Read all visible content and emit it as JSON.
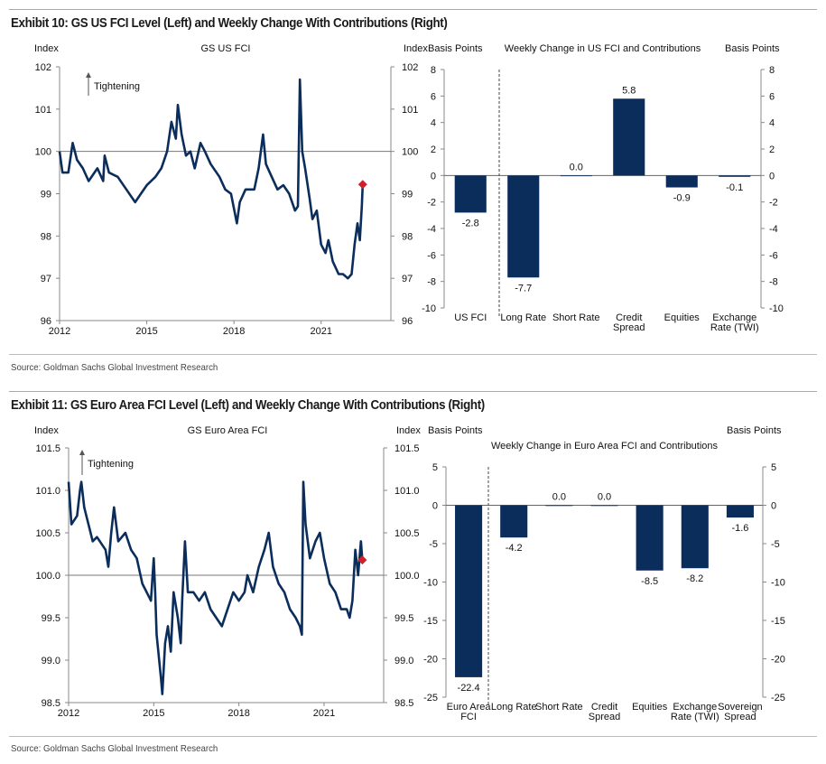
{
  "exhibits": [
    {
      "title": "Exhibit 10: GS US FCI Level (Left) and Weekly Change With Contributions (Right)",
      "source": "Source: Goldman Sachs Global Investment Research"
    },
    {
      "title": "Exhibit 11: GS Euro Area FCI Level (Left) and Weekly Change With Contributions (Right)",
      "source": "Source: Goldman Sachs Global Investment Research"
    }
  ],
  "chart_data": [
    {
      "type": "line",
      "title": "GS US FCI",
      "ylabel_left": "Index",
      "ylabel_right": "Index",
      "annotation": "Tightening",
      "ylim": [
        96,
        102
      ],
      "yticks": [
        "96",
        "97",
        "98",
        "99",
        "100",
        "101",
        "102"
      ],
      "xlim": [
        2012,
        2023.4
      ],
      "xticks": [
        "2012",
        "2015",
        "2018",
        "2021"
      ],
      "reference_line": 100,
      "line_color": "#0b2d5b",
      "marker_color": "#d0202a",
      "latest": [
        2022.43,
        99.22
      ],
      "points": [
        [
          2012.0,
          100.0
        ],
        [
          2012.1,
          99.5
        ],
        [
          2012.3,
          99.5
        ],
        [
          2012.45,
          100.2
        ],
        [
          2012.6,
          99.8
        ],
        [
          2012.8,
          99.6
        ],
        [
          2013.0,
          99.3
        ],
        [
          2013.3,
          99.6
        ],
        [
          2013.5,
          99.3
        ],
        [
          2013.55,
          99.9
        ],
        [
          2013.7,
          99.5
        ],
        [
          2014.0,
          99.4
        ],
        [
          2014.3,
          99.1
        ],
        [
          2014.6,
          98.8
        ],
        [
          2014.8,
          99.0
        ],
        [
          2015.0,
          99.2
        ],
        [
          2015.3,
          99.4
        ],
        [
          2015.5,
          99.6
        ],
        [
          2015.7,
          100.0
        ],
        [
          2015.85,
          100.7
        ],
        [
          2016.0,
          100.3
        ],
        [
          2016.07,
          101.1
        ],
        [
          2016.2,
          100.4
        ],
        [
          2016.35,
          99.9
        ],
        [
          2016.5,
          100.0
        ],
        [
          2016.65,
          99.6
        ],
        [
          2016.85,
          100.2
        ],
        [
          2017.0,
          100.0
        ],
        [
          2017.2,
          99.7
        ],
        [
          2017.5,
          99.4
        ],
        [
          2017.7,
          99.1
        ],
        [
          2017.9,
          99.0
        ],
        [
          2018.1,
          98.3
        ],
        [
          2018.2,
          98.8
        ],
        [
          2018.4,
          99.1
        ],
        [
          2018.7,
          99.1
        ],
        [
          2018.85,
          99.6
        ],
        [
          2019.0,
          100.4
        ],
        [
          2019.1,
          99.7
        ],
        [
          2019.3,
          99.4
        ],
        [
          2019.5,
          99.1
        ],
        [
          2019.7,
          99.2
        ],
        [
          2019.9,
          99.0
        ],
        [
          2020.1,
          98.6
        ],
        [
          2020.2,
          98.7
        ],
        [
          2020.27,
          101.7
        ],
        [
          2020.35,
          100.0
        ],
        [
          2020.45,
          99.6
        ],
        [
          2020.6,
          98.9
        ],
        [
          2020.7,
          98.4
        ],
        [
          2020.85,
          98.6
        ],
        [
          2021.0,
          97.8
        ],
        [
          2021.15,
          97.6
        ],
        [
          2021.25,
          97.9
        ],
        [
          2021.4,
          97.4
        ],
        [
          2021.6,
          97.1
        ],
        [
          2021.75,
          97.1
        ],
        [
          2021.92,
          97.0
        ],
        [
          2022.05,
          97.1
        ],
        [
          2022.15,
          97.8
        ],
        [
          2022.25,
          98.3
        ],
        [
          2022.33,
          97.9
        ],
        [
          2022.4,
          98.7
        ],
        [
          2022.43,
          99.22
        ]
      ]
    },
    {
      "type": "bar",
      "title": "Weekly Change in US FCI and Contributions",
      "ylabel_left": "Basis Points",
      "ylabel_right": "Basis Points",
      "ylim": [
        -10,
        8
      ],
      "yticks": [
        "-10",
        "-8",
        "-6",
        "-4",
        "-2",
        "0",
        "2",
        "4",
        "6",
        "8"
      ],
      "categories": [
        [
          "US FCI"
        ],
        [
          "Long Rate"
        ],
        [
          "Short Rate"
        ],
        [
          "Credit",
          "Spread"
        ],
        [
          "Equities"
        ],
        [
          "Exchange",
          "Rate (TWI)"
        ]
      ],
      "values": [
        -2.8,
        -7.7,
        0.0,
        5.8,
        -0.9,
        -0.1
      ],
      "labels": [
        "-2.8",
        "-7.7",
        "0.0",
        "5.8",
        "-0.9",
        "-0.1"
      ],
      "bar_color": "#0b2d5b"
    },
    {
      "type": "line",
      "title": "GS Euro Area FCI",
      "ylabel_left": "Index",
      "ylabel_right": "Index",
      "annotation": "Tightening",
      "ylim": [
        98.5,
        101.5
      ],
      "yticks": [
        "98.5",
        "99.0",
        "99.5",
        "100.0",
        "100.5",
        "101.0",
        "101.5"
      ],
      "xlim": [
        2012,
        2023.1
      ],
      "xticks": [
        "2012",
        "2015",
        "2018",
        "2021"
      ],
      "reference_line": 100,
      "line_color": "#0b2d5b",
      "marker_color": "#d0202a",
      "latest": [
        2022.35,
        100.18
      ],
      "points": [
        [
          2012.0,
          101.1
        ],
        [
          2012.1,
          100.6
        ],
        [
          2012.3,
          100.7
        ],
        [
          2012.4,
          101.0
        ],
        [
          2012.45,
          101.1
        ],
        [
          2012.55,
          100.8
        ],
        [
          2012.7,
          100.6
        ],
        [
          2012.85,
          100.4
        ],
        [
          2013.0,
          100.45
        ],
        [
          2013.3,
          100.3
        ],
        [
          2013.4,
          100.1
        ],
        [
          2013.5,
          100.5
        ],
        [
          2013.6,
          100.8
        ],
        [
          2013.75,
          100.4
        ],
        [
          2014.0,
          100.5
        ],
        [
          2014.2,
          100.3
        ],
        [
          2014.4,
          100.2
        ],
        [
          2014.6,
          99.9
        ],
        [
          2014.75,
          99.8
        ],
        [
          2014.9,
          99.7
        ],
        [
          2015.0,
          100.2
        ],
        [
          2015.05,
          99.8
        ],
        [
          2015.1,
          99.3
        ],
        [
          2015.25,
          98.8
        ],
        [
          2015.3,
          98.6
        ],
        [
          2015.4,
          99.2
        ],
        [
          2015.5,
          99.4
        ],
        [
          2015.6,
          99.1
        ],
        [
          2015.7,
          99.8
        ],
        [
          2015.85,
          99.5
        ],
        [
          2015.95,
          99.2
        ],
        [
          2016.0,
          99.7
        ],
        [
          2016.1,
          100.4
        ],
        [
          2016.2,
          99.8
        ],
        [
          2016.4,
          99.8
        ],
        [
          2016.6,
          99.7
        ],
        [
          2016.8,
          99.8
        ],
        [
          2017.0,
          99.6
        ],
        [
          2017.2,
          99.5
        ],
        [
          2017.4,
          99.4
        ],
        [
          2017.6,
          99.6
        ],
        [
          2017.8,
          99.8
        ],
        [
          2018.0,
          99.7
        ],
        [
          2018.2,
          99.8
        ],
        [
          2018.3,
          100.0
        ],
        [
          2018.5,
          99.8
        ],
        [
          2018.7,
          100.1
        ],
        [
          2018.9,
          100.3
        ],
        [
          2019.05,
          100.5
        ],
        [
          2019.2,
          100.1
        ],
        [
          2019.4,
          99.9
        ],
        [
          2019.6,
          99.8
        ],
        [
          2019.8,
          99.6
        ],
        [
          2020.0,
          99.5
        ],
        [
          2020.15,
          99.4
        ],
        [
          2020.22,
          99.3
        ],
        [
          2020.27,
          101.1
        ],
        [
          2020.35,
          100.6
        ],
        [
          2020.5,
          100.2
        ],
        [
          2020.7,
          100.4
        ],
        [
          2020.85,
          100.5
        ],
        [
          2021.0,
          100.2
        ],
        [
          2021.2,
          99.9
        ],
        [
          2021.4,
          99.8
        ],
        [
          2021.6,
          99.6
        ],
        [
          2021.8,
          99.6
        ],
        [
          2021.9,
          99.5
        ],
        [
          2022.0,
          99.7
        ],
        [
          2022.1,
          100.3
        ],
        [
          2022.2,
          100.0
        ],
        [
          2022.3,
          100.4
        ],
        [
          2022.35,
          100.18
        ]
      ]
    },
    {
      "type": "bar",
      "title": "Weekly Change in Euro Area FCI and Contributions",
      "ylabel_left": "Basis Points",
      "ylabel_right": "Basis Points",
      "ylim": [
        -25,
        5
      ],
      "yticks": [
        "-25",
        "-20",
        "-15",
        "-10",
        "-5",
        "0",
        "5"
      ],
      "categories": [
        [
          "Euro Area",
          "FCI"
        ],
        [
          "Long Rate"
        ],
        [
          "Short Rate"
        ],
        [
          "Credit",
          "Spread"
        ],
        [
          "Equities"
        ],
        [
          "Exchange",
          "Rate (TWI)"
        ],
        [
          "Sovereign",
          "Spread"
        ]
      ],
      "values": [
        -22.4,
        -4.2,
        0.0,
        0.0,
        -8.5,
        -8.2,
        -1.6
      ],
      "labels": [
        "-22.4",
        "-4.2",
        "0.0",
        "0.0",
        "-8.5",
        "-8.2",
        "-1.6"
      ],
      "bar_color": "#0b2d5b"
    }
  ]
}
